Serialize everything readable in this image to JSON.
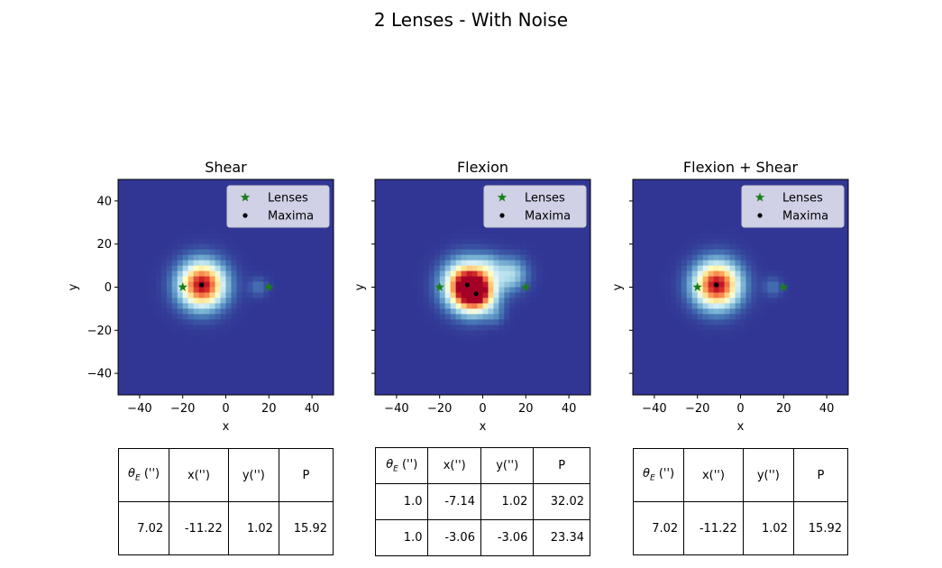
{
  "figure_title": "2 Lenses - With Noise",
  "colors": {
    "background_map": "#313695",
    "lens_marker": "#1a7f1a",
    "maxima_marker": "#000000",
    "legend_bg": "#d9d9ea"
  },
  "chart_data": [
    {
      "type": "heatmap",
      "title": "Shear",
      "xlabel": "x",
      "ylabel": "y",
      "xlim": [
        -50,
        50
      ],
      "ylim": [
        -50,
        50
      ],
      "xticks": [
        -40,
        -20,
        0,
        20,
        40
      ],
      "yticks": [
        -40,
        -20,
        0,
        20,
        40
      ],
      "grid": false,
      "legend_position": "top-right",
      "colormap": "RdYlBu_r",
      "series": [
        {
          "name": "Lenses",
          "marker": "star",
          "points": [
            [
              -20,
              0
            ],
            [
              20,
              0
            ]
          ]
        },
        {
          "name": "Maxima",
          "marker": "dot",
          "points": [
            [
              -11.22,
              1.02
            ]
          ]
        }
      ],
      "blobs": [
        {
          "x": -11,
          "y": 1,
          "sigma": 7,
          "amp": 1.0
        },
        {
          "x": 15,
          "y": 0,
          "sigma": 3,
          "amp": 0.1
        }
      ],
      "table": {
        "headers": [
          "θE ('')",
          "x('')",
          "y('')",
          "P"
        ],
        "rows": [
          [
            "7.02",
            "-11.22",
            "1.02",
            "15.92"
          ]
        ]
      }
    },
    {
      "type": "heatmap",
      "title": "Flexion",
      "xlabel": "x",
      "ylabel": "y",
      "xlim": [
        -50,
        50
      ],
      "ylim": [
        -50,
        50
      ],
      "xticks": [
        -40,
        -20,
        0,
        20,
        40
      ],
      "yticks": [
        -40,
        -20,
        0,
        20,
        40
      ],
      "grid": false,
      "legend_position": "top-right",
      "colormap": "RdYlBu_r",
      "series": [
        {
          "name": "Lenses",
          "marker": "star",
          "points": [
            [
              -20,
              0
            ],
            [
              20,
              0
            ]
          ]
        },
        {
          "name": "Maxima",
          "marker": "dot",
          "points": [
            [
              -7.14,
              1.02
            ],
            [
              -3.06,
              -3.06
            ]
          ]
        }
      ],
      "blobs": [
        {
          "x": -7,
          "y": 1,
          "sigma": 7,
          "amp": 1.0
        },
        {
          "x": -3,
          "y": -3,
          "sigma": 6,
          "amp": 0.7
        },
        {
          "x": 13,
          "y": 6,
          "sigma": 5,
          "amp": 0.3
        },
        {
          "x": 3,
          "y": 10,
          "sigma": 4,
          "amp": 0.15
        },
        {
          "x": 6,
          "y": -13,
          "sigma": 3,
          "amp": 0.08
        }
      ],
      "table": {
        "headers": [
          "θE ('')",
          "x('')",
          "y('')",
          "P"
        ],
        "rows": [
          [
            "1.0",
            "-7.14",
            "1.02",
            "32.02"
          ],
          [
            "1.0",
            "-3.06",
            "-3.06",
            "23.34"
          ]
        ]
      }
    },
    {
      "type": "heatmap",
      "title": "Flexion + Shear",
      "xlabel": "x",
      "ylabel": "y",
      "xlim": [
        -50,
        50
      ],
      "ylim": [
        -50,
        50
      ],
      "xticks": [
        -40,
        -20,
        0,
        20,
        40
      ],
      "yticks": [
        -40,
        -20,
        0,
        20,
        40
      ],
      "grid": false,
      "legend_position": "top-right",
      "colormap": "RdYlBu_r",
      "series": [
        {
          "name": "Lenses",
          "marker": "star",
          "points": [
            [
              -20,
              0
            ],
            [
              20,
              0
            ]
          ]
        },
        {
          "name": "Maxima",
          "marker": "dot",
          "points": [
            [
              -11.22,
              1.02
            ]
          ]
        }
      ],
      "blobs": [
        {
          "x": -11,
          "y": 1,
          "sigma": 7,
          "amp": 1.0
        },
        {
          "x": 15,
          "y": 0,
          "sigma": 3,
          "amp": 0.1
        }
      ],
      "table": {
        "headers": [
          "θE ('')",
          "x('')",
          "y('')",
          "P"
        ],
        "rows": [
          [
            "7.02",
            "-11.22",
            "1.02",
            "15.92"
          ]
        ]
      }
    }
  ]
}
